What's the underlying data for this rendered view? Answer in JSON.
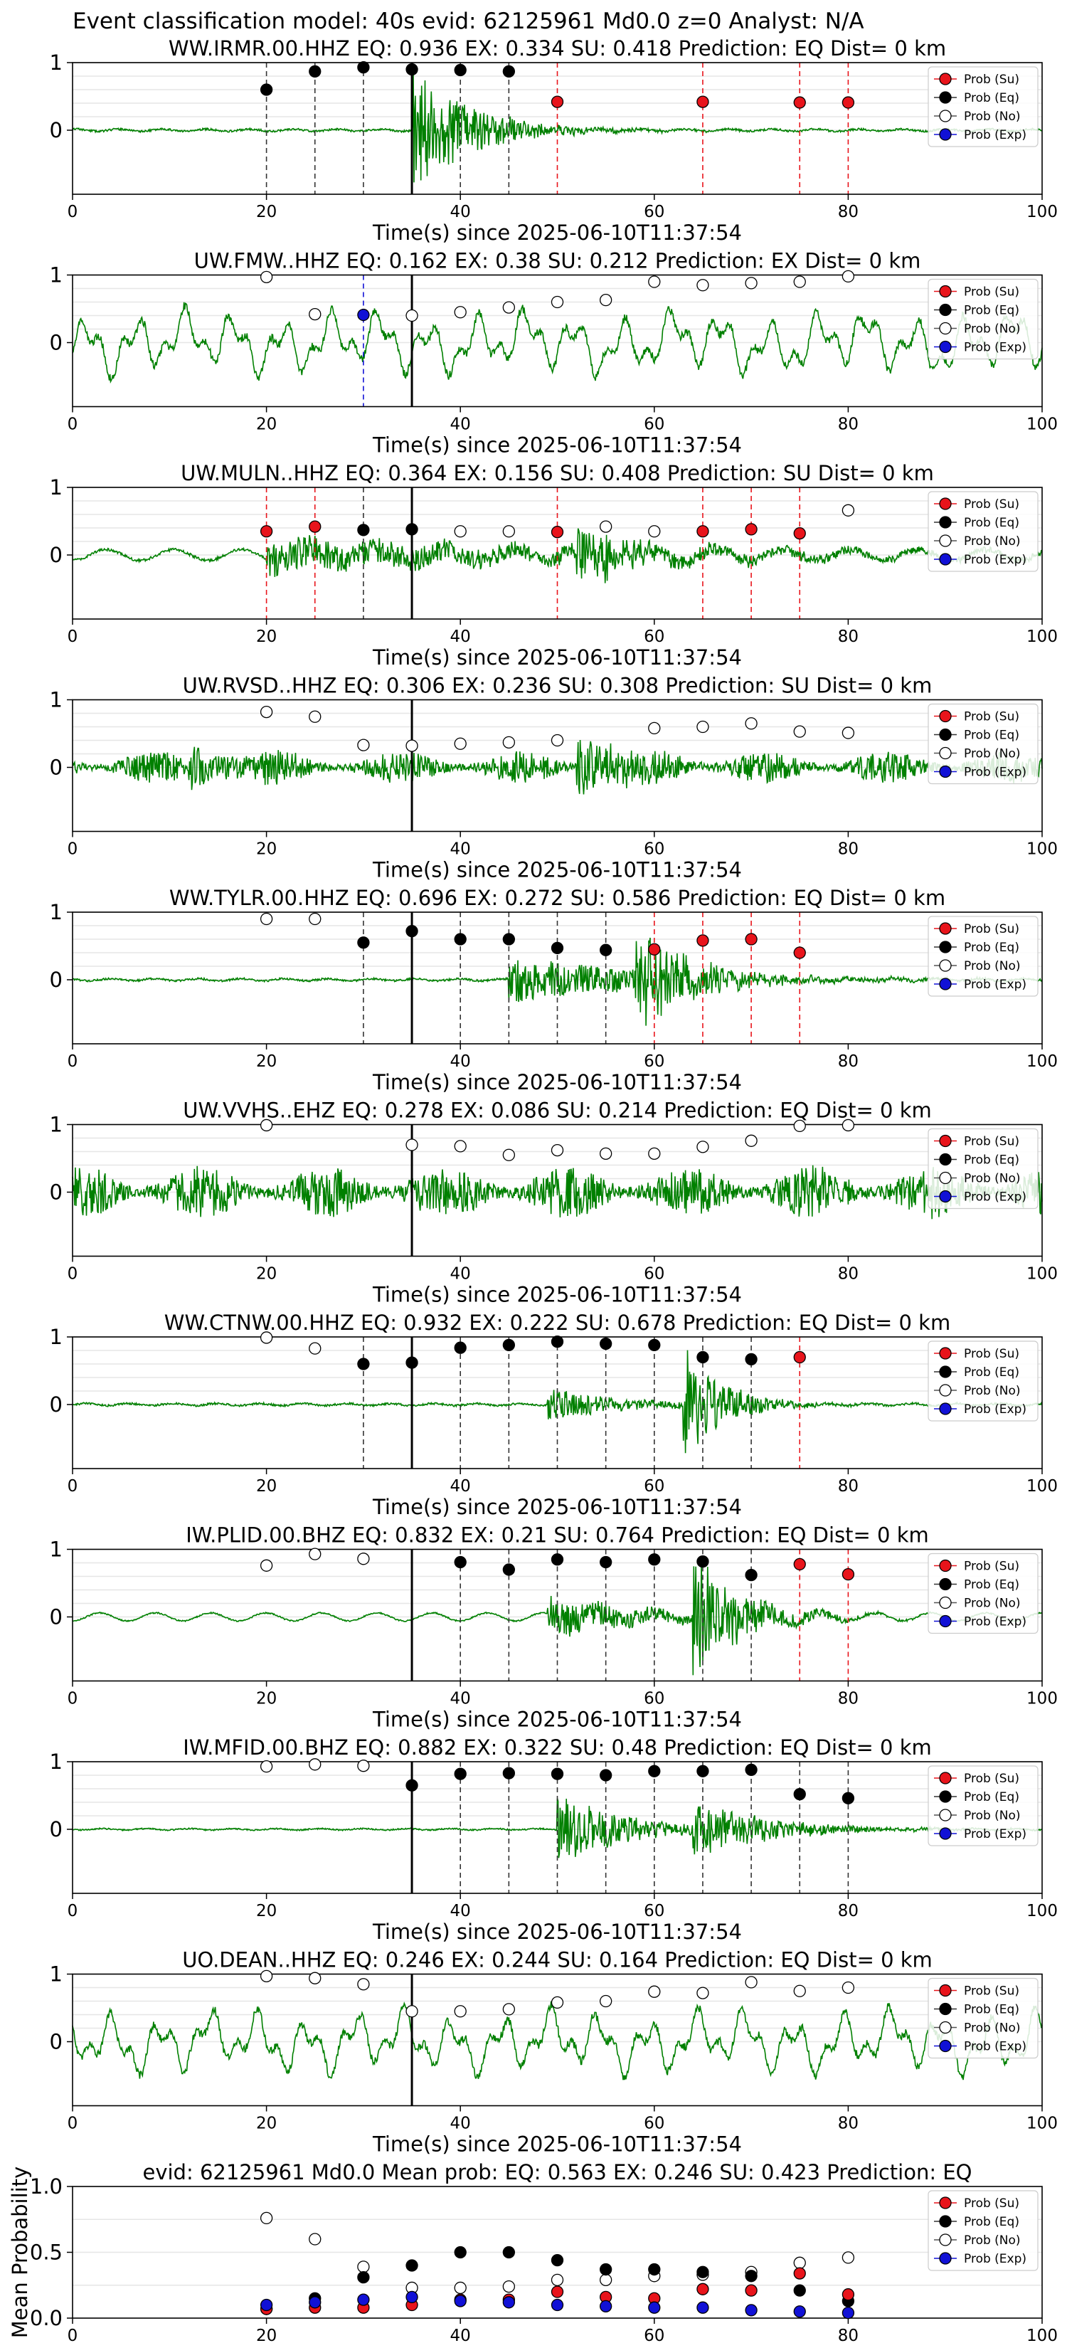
{
  "figure": {
    "suptitle": "Event classification model: 40s evid: 62125961 Md0.0 z=0 Analyst: N/A"
  },
  "legend": {
    "labels": [
      "Prob (Su)",
      "Prob (Eq)",
      "Prob (No)",
      "Prob (Exp)"
    ],
    "placement": "top-right"
  },
  "colors": {
    "trace": "#008000",
    "su": "#e8141b",
    "eq": "#000000",
    "no": "#ffffff",
    "exp": "#1111d6",
    "grid": "#e6e6e6"
  },
  "chart_data": [
    {
      "type": "scatter",
      "title": "WW.IRMR.00.HHZ    EQ: 0.936   EX: 0.334   SU: 0.418    Prediction: EQ     Dist= 0 km",
      "xlabel": "Time(s) since 2025-06-10T11:37:54",
      "xlim": [
        0,
        100
      ],
      "yticks": [
        0,
        1
      ],
      "xticks": [
        0,
        20,
        40,
        60,
        80,
        100
      ],
      "trace": {
        "style": "quiet",
        "amp": 0.03,
        "seed": 11,
        "events": [
          {
            "t": 35,
            "amp": 0.95,
            "decay": 6
          }
        ]
      },
      "arrival": 35,
      "grid": true,
      "points": [
        {
          "x": 20,
          "y": 0.6,
          "cls": "eq"
        },
        {
          "x": 25,
          "y": 0.87,
          "cls": "eq"
        },
        {
          "x": 30,
          "y": 0.93,
          "cls": "eq"
        },
        {
          "x": 35,
          "y": 0.9,
          "cls": "eq"
        },
        {
          "x": 40,
          "y": 0.89,
          "cls": "eq"
        },
        {
          "x": 45,
          "y": 0.87,
          "cls": "eq"
        },
        {
          "x": 50,
          "y": 0.42,
          "cls": "su"
        },
        {
          "x": 65,
          "y": 0.42,
          "cls": "su"
        },
        {
          "x": 75,
          "y": 0.41,
          "cls": "su"
        },
        {
          "x": 80,
          "y": 0.41,
          "cls": "su"
        }
      ]
    },
    {
      "type": "scatter",
      "title": "UW.FMW..HHZ    EQ: 0.162   EX: 0.38   SU: 0.212    Prediction: EX     Dist= 0 km",
      "xlabel": "Time(s) since 2025-06-10T11:37:54",
      "xlim": [
        0,
        100
      ],
      "yticks": [
        0,
        1
      ],
      "xticks": [
        0,
        20,
        40,
        60,
        80,
        100
      ],
      "trace": {
        "style": "swell",
        "amp": 0.5,
        "seed": 22,
        "events": []
      },
      "arrival": 35,
      "grid": true,
      "points": [
        {
          "x": 20,
          "y": 0.97,
          "cls": "no"
        },
        {
          "x": 25,
          "y": 0.42,
          "cls": "no"
        },
        {
          "x": 30,
          "y": 0.41,
          "cls": "exp"
        },
        {
          "x": 35,
          "y": 0.4,
          "cls": "no"
        },
        {
          "x": 40,
          "y": 0.45,
          "cls": "no"
        },
        {
          "x": 45,
          "y": 0.52,
          "cls": "no"
        },
        {
          "x": 50,
          "y": 0.6,
          "cls": "no"
        },
        {
          "x": 55,
          "y": 0.63,
          "cls": "no"
        },
        {
          "x": 60,
          "y": 0.9,
          "cls": "no"
        },
        {
          "x": 65,
          "y": 0.85,
          "cls": "no"
        },
        {
          "x": 70,
          "y": 0.88,
          "cls": "no"
        },
        {
          "x": 75,
          "y": 0.9,
          "cls": "no"
        },
        {
          "x": 80,
          "y": 0.98,
          "cls": "no"
        }
      ]
    },
    {
      "type": "scatter",
      "title": "UW.MULN..HHZ    EQ: 0.364   EX: 0.156   SU: 0.408    Prediction: SU     Dist= 0 km",
      "xlabel": "Time(s) since 2025-06-10T11:37:54",
      "xlim": [
        0,
        100
      ],
      "yticks": [
        0,
        1
      ],
      "xticks": [
        0,
        20,
        40,
        60,
        80,
        100
      ],
      "trace": {
        "style": "mixed",
        "amp": 0.08,
        "seed": 33,
        "events": [
          {
            "t": 20,
            "amp": 0.25,
            "decay": 40
          },
          {
            "t": 52,
            "amp": 0.45,
            "decay": 6
          }
        ]
      },
      "arrival": 35,
      "grid": true,
      "points": [
        {
          "x": 20,
          "y": 0.35,
          "cls": "su"
        },
        {
          "x": 25,
          "y": 0.42,
          "cls": "su"
        },
        {
          "x": 30,
          "y": 0.37,
          "cls": "eq"
        },
        {
          "x": 35,
          "y": 0.38,
          "cls": "eq"
        },
        {
          "x": 40,
          "y": 0.35,
          "cls": "no"
        },
        {
          "x": 45,
          "y": 0.35,
          "cls": "no"
        },
        {
          "x": 50,
          "y": 0.34,
          "cls": "su"
        },
        {
          "x": 55,
          "y": 0.42,
          "cls": "no"
        },
        {
          "x": 60,
          "y": 0.35,
          "cls": "no"
        },
        {
          "x": 65,
          "y": 0.35,
          "cls": "su"
        },
        {
          "x": 70,
          "y": 0.38,
          "cls": "su"
        },
        {
          "x": 75,
          "y": 0.32,
          "cls": "su"
        },
        {
          "x": 80,
          "y": 0.66,
          "cls": "no"
        }
      ]
    },
    {
      "type": "scatter",
      "title": "UW.RVSD..HHZ    EQ: 0.306   EX: 0.236   SU: 0.308    Prediction: SU     Dist= 0 km",
      "xlabel": "Time(s) since 2025-06-10T11:37:54",
      "xlim": [
        0,
        100
      ],
      "yticks": [
        0,
        1
      ],
      "xticks": [
        0,
        20,
        40,
        60,
        80,
        100
      ],
      "trace": {
        "style": "noisy",
        "amp": 0.3,
        "seed": 44,
        "events": [
          {
            "t": 12,
            "amp": 0.35,
            "decay": 4
          },
          {
            "t": 52,
            "amp": 0.5,
            "decay": 5
          }
        ]
      },
      "arrival": 35,
      "grid": true,
      "points": [
        {
          "x": 20,
          "y": 0.82,
          "cls": "no"
        },
        {
          "x": 25,
          "y": 0.75,
          "cls": "no"
        },
        {
          "x": 30,
          "y": 0.33,
          "cls": "no"
        },
        {
          "x": 35,
          "y": 0.32,
          "cls": "no"
        },
        {
          "x": 40,
          "y": 0.35,
          "cls": "no"
        },
        {
          "x": 45,
          "y": 0.37,
          "cls": "no"
        },
        {
          "x": 50,
          "y": 0.4,
          "cls": "no"
        },
        {
          "x": 60,
          "y": 0.58,
          "cls": "no"
        },
        {
          "x": 65,
          "y": 0.6,
          "cls": "no"
        },
        {
          "x": 70,
          "y": 0.65,
          "cls": "no"
        },
        {
          "x": 75,
          "y": 0.53,
          "cls": "no"
        },
        {
          "x": 80,
          "y": 0.51,
          "cls": "no"
        }
      ]
    },
    {
      "type": "scatter",
      "title": "WW.TYLR.00.HHZ    EQ: 0.696   EX: 0.272   SU: 0.586    Prediction: EQ     Dist= 0 km",
      "xlabel": "Time(s) since 2025-06-10T11:37:54",
      "xlim": [
        0,
        100
      ],
      "yticks": [
        0,
        1
      ],
      "xticks": [
        0,
        20,
        40,
        60,
        80,
        100
      ],
      "trace": {
        "style": "quiet",
        "amp": 0.03,
        "seed": 55,
        "events": [
          {
            "t": 45,
            "amp": 0.35,
            "decay": 15
          },
          {
            "t": 58,
            "amp": 0.9,
            "decay": 5
          }
        ]
      },
      "arrival": 35,
      "grid": true,
      "points": [
        {
          "x": 20,
          "y": 0.9,
          "cls": "no"
        },
        {
          "x": 25,
          "y": 0.9,
          "cls": "no"
        },
        {
          "x": 30,
          "y": 0.55,
          "cls": "eq"
        },
        {
          "x": 35,
          "y": 0.72,
          "cls": "eq"
        },
        {
          "x": 40,
          "y": 0.6,
          "cls": "eq"
        },
        {
          "x": 45,
          "y": 0.6,
          "cls": "eq"
        },
        {
          "x": 50,
          "y": 0.47,
          "cls": "eq"
        },
        {
          "x": 55,
          "y": 0.44,
          "cls": "eq"
        },
        {
          "x": 60,
          "y": 0.45,
          "cls": "su"
        },
        {
          "x": 65,
          "y": 0.58,
          "cls": "su"
        },
        {
          "x": 70,
          "y": 0.6,
          "cls": "su"
        },
        {
          "x": 75,
          "y": 0.4,
          "cls": "su"
        }
      ]
    },
    {
      "type": "scatter",
      "title": "UW.VVHS..EHZ    EQ: 0.278   EX: 0.086   SU: 0.214    Prediction: EQ     Dist= 0 km",
      "xlabel": "Time(s) since 2025-06-10T11:37:54",
      "xlim": [
        0,
        100
      ],
      "yticks": [
        0,
        1
      ],
      "xticks": [
        0,
        20,
        40,
        60,
        80,
        100
      ],
      "trace": {
        "style": "noisy",
        "amp": 0.5,
        "seed": 66,
        "events": []
      },
      "arrival": 35,
      "grid": true,
      "points": [
        {
          "x": 20,
          "y": 0.99,
          "cls": "no"
        },
        {
          "x": 35,
          "y": 0.7,
          "cls": "no"
        },
        {
          "x": 40,
          "y": 0.68,
          "cls": "no"
        },
        {
          "x": 45,
          "y": 0.55,
          "cls": "no"
        },
        {
          "x": 50,
          "y": 0.62,
          "cls": "no"
        },
        {
          "x": 55,
          "y": 0.57,
          "cls": "no"
        },
        {
          "x": 60,
          "y": 0.57,
          "cls": "no"
        },
        {
          "x": 65,
          "y": 0.67,
          "cls": "no"
        },
        {
          "x": 70,
          "y": 0.76,
          "cls": "no"
        },
        {
          "x": 75,
          "y": 0.98,
          "cls": "no"
        },
        {
          "x": 80,
          "y": 0.99,
          "cls": "no"
        }
      ]
    },
    {
      "type": "scatter",
      "title": "WW.CTNW.00.HHZ    EQ: 0.932   EX: 0.222   SU: 0.678    Prediction: EQ     Dist= 0 km",
      "xlabel": "Time(s) since 2025-06-10T11:37:54",
      "xlim": [
        0,
        100
      ],
      "yticks": [
        0,
        1
      ],
      "xticks": [
        0,
        20,
        40,
        60,
        80,
        100
      ],
      "trace": {
        "style": "quiet",
        "amp": 0.03,
        "seed": 77,
        "events": [
          {
            "t": 49,
            "amp": 0.25,
            "decay": 8
          },
          {
            "t": 63,
            "amp": 0.9,
            "decay": 4
          }
        ]
      },
      "arrival": 35,
      "grid": true,
      "points": [
        {
          "x": 20,
          "y": 0.99,
          "cls": "no"
        },
        {
          "x": 25,
          "y": 0.83,
          "cls": "no"
        },
        {
          "x": 30,
          "y": 0.6,
          "cls": "eq"
        },
        {
          "x": 35,
          "y": 0.62,
          "cls": "eq"
        },
        {
          "x": 40,
          "y": 0.84,
          "cls": "eq"
        },
        {
          "x": 45,
          "y": 0.88,
          "cls": "eq"
        },
        {
          "x": 50,
          "y": 0.93,
          "cls": "eq"
        },
        {
          "x": 55,
          "y": 0.9,
          "cls": "eq"
        },
        {
          "x": 60,
          "y": 0.88,
          "cls": "eq"
        },
        {
          "x": 65,
          "y": 0.7,
          "cls": "eq"
        },
        {
          "x": 70,
          "y": 0.67,
          "cls": "eq"
        },
        {
          "x": 75,
          "y": 0.7,
          "cls": "su"
        }
      ]
    },
    {
      "type": "scatter",
      "title": "IW.PLID.00.BHZ    EQ: 0.832   EX: 0.21   SU: 0.764    Prediction: EQ     Dist= 0 km",
      "xlabel": "Time(s) since 2025-06-10T11:37:54",
      "xlim": [
        0,
        100
      ],
      "yticks": [
        0,
        1
      ],
      "xticks": [
        0,
        20,
        40,
        60,
        80,
        100
      ],
      "trace": {
        "style": "wavy",
        "amp": 0.06,
        "seed": 88,
        "events": [
          {
            "t": 49,
            "amp": 0.3,
            "decay": 10
          },
          {
            "t": 64,
            "amp": 0.9,
            "decay": 5
          }
        ]
      },
      "arrival": 35,
      "grid": true,
      "points": [
        {
          "x": 20,
          "y": 0.76,
          "cls": "no"
        },
        {
          "x": 25,
          "y": 0.93,
          "cls": "no"
        },
        {
          "x": 30,
          "y": 0.86,
          "cls": "no"
        },
        {
          "x": 40,
          "y": 0.81,
          "cls": "eq"
        },
        {
          "x": 45,
          "y": 0.7,
          "cls": "eq"
        },
        {
          "x": 50,
          "y": 0.85,
          "cls": "eq"
        },
        {
          "x": 55,
          "y": 0.81,
          "cls": "eq"
        },
        {
          "x": 60,
          "y": 0.85,
          "cls": "eq"
        },
        {
          "x": 65,
          "y": 0.82,
          "cls": "eq"
        },
        {
          "x": 70,
          "y": 0.62,
          "cls": "eq"
        },
        {
          "x": 75,
          "y": 0.78,
          "cls": "su"
        },
        {
          "x": 80,
          "y": 0.63,
          "cls": "su"
        }
      ]
    },
    {
      "type": "scatter",
      "title": "IW.MFID.00.BHZ    EQ: 0.882   EX: 0.322   SU: 0.48    Prediction: EQ     Dist= 0 km",
      "xlabel": "Time(s) since 2025-06-10T11:37:54",
      "xlim": [
        0,
        100
      ],
      "yticks": [
        0,
        1
      ],
      "xticks": [
        0,
        20,
        40,
        60,
        80,
        100
      ],
      "trace": {
        "style": "quiet",
        "amp": 0.02,
        "seed": 99,
        "events": [
          {
            "t": 50,
            "amp": 0.55,
            "decay": 7
          },
          {
            "t": 64,
            "amp": 0.4,
            "decay": 8
          }
        ]
      },
      "arrival": 35,
      "grid": true,
      "points": [
        {
          "x": 20,
          "y": 0.93,
          "cls": "no"
        },
        {
          "x": 25,
          "y": 0.96,
          "cls": "no"
        },
        {
          "x": 30,
          "y": 0.94,
          "cls": "no"
        },
        {
          "x": 35,
          "y": 0.65,
          "cls": "eq"
        },
        {
          "x": 40,
          "y": 0.82,
          "cls": "eq"
        },
        {
          "x": 45,
          "y": 0.83,
          "cls": "eq"
        },
        {
          "x": 50,
          "y": 0.82,
          "cls": "eq"
        },
        {
          "x": 55,
          "y": 0.8,
          "cls": "eq"
        },
        {
          "x": 60,
          "y": 0.86,
          "cls": "eq"
        },
        {
          "x": 65,
          "y": 0.86,
          "cls": "eq"
        },
        {
          "x": 70,
          "y": 0.88,
          "cls": "eq"
        },
        {
          "x": 75,
          "y": 0.52,
          "cls": "eq"
        },
        {
          "x": 80,
          "y": 0.46,
          "cls": "eq"
        }
      ]
    },
    {
      "type": "scatter",
      "title": "UO.DEAN..HHZ    EQ: 0.246   EX: 0.244   SU: 0.164    Prediction: EQ     Dist= 0 km",
      "xlabel": "Time(s) since 2025-06-10T11:37:54",
      "xlim": [
        0,
        100
      ],
      "yticks": [
        0,
        1
      ],
      "xticks": [
        0,
        20,
        40,
        60,
        80,
        100
      ],
      "trace": {
        "style": "swell",
        "amp": 0.5,
        "seed": 111,
        "events": []
      },
      "arrival": 35,
      "grid": true,
      "points": [
        {
          "x": 20,
          "y": 0.97,
          "cls": "no"
        },
        {
          "x": 25,
          "y": 0.94,
          "cls": "no"
        },
        {
          "x": 30,
          "y": 0.85,
          "cls": "no"
        },
        {
          "x": 35,
          "y": 0.45,
          "cls": "no"
        },
        {
          "x": 40,
          "y": 0.45,
          "cls": "no"
        },
        {
          "x": 45,
          "y": 0.48,
          "cls": "no"
        },
        {
          "x": 50,
          "y": 0.58,
          "cls": "no"
        },
        {
          "x": 55,
          "y": 0.6,
          "cls": "no"
        },
        {
          "x": 60,
          "y": 0.74,
          "cls": "no"
        },
        {
          "x": 65,
          "y": 0.72,
          "cls": "no"
        },
        {
          "x": 70,
          "y": 0.88,
          "cls": "no"
        },
        {
          "x": 75,
          "y": 0.75,
          "cls": "no"
        },
        {
          "x": 80,
          "y": 0.8,
          "cls": "no"
        }
      ]
    },
    {
      "type": "scatter",
      "title": "evid: 62125961  Md0.0   Mean prob:   EQ: 0.563  EX: 0.246  SU: 0.423   Prediction: EQ",
      "ylabel": "Mean Probability",
      "xlim": [
        0,
        100
      ],
      "ylim": [
        0,
        1
      ],
      "yticks": [
        0.0,
        0.5,
        1.0
      ],
      "xticks": [
        0,
        20,
        40,
        60,
        80,
        100
      ],
      "grid": true,
      "mean": {
        "x": [
          20,
          25,
          30,
          35,
          40,
          45,
          50,
          55,
          60,
          65,
          70,
          75,
          80
        ],
        "su": [
          0.07,
          0.08,
          0.08,
          0.1,
          0.14,
          0.14,
          0.2,
          0.16,
          0.15,
          0.22,
          0.21,
          0.34,
          0.18
        ],
        "eq": [
          0.07,
          0.15,
          0.31,
          0.4,
          0.5,
          0.5,
          0.44,
          0.37,
          0.37,
          0.35,
          0.32,
          0.21,
          0.13
        ],
        "no": [
          0.76,
          0.6,
          0.39,
          0.23,
          0.23,
          0.24,
          0.29,
          0.29,
          0.32,
          0.33,
          0.35,
          0.42,
          0.46
        ],
        "exp": [
          0.1,
          0.12,
          0.14,
          0.16,
          0.13,
          0.12,
          0.1,
          0.09,
          0.08,
          0.08,
          0.06,
          0.05,
          0.04
        ]
      }
    }
  ]
}
